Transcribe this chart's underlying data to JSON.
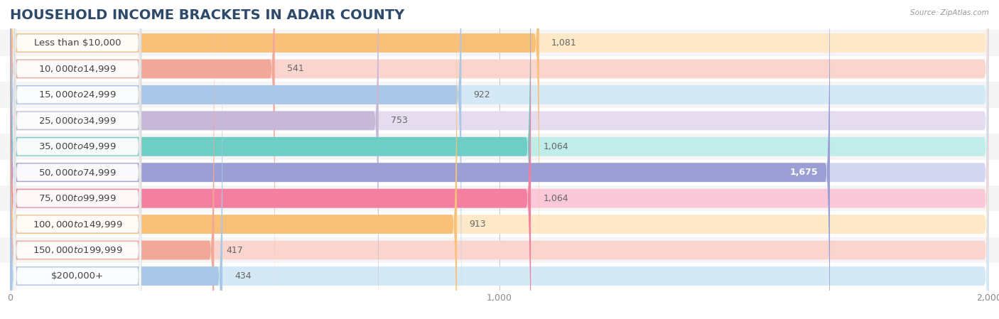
{
  "title": "HOUSEHOLD INCOME BRACKETS IN ADAIR COUNTY",
  "source": "Source: ZipAtlas.com",
  "categories": [
    "Less than $10,000",
    "$10,000 to $14,999",
    "$15,000 to $24,999",
    "$25,000 to $34,999",
    "$35,000 to $49,999",
    "$50,000 to $74,999",
    "$75,000 to $99,999",
    "$100,000 to $149,999",
    "$150,000 to $199,999",
    "$200,000+"
  ],
  "values": [
    1081,
    541,
    922,
    753,
    1064,
    1675,
    1064,
    913,
    417,
    434
  ],
  "bar_colors": [
    "#F9C07A",
    "#F2A899",
    "#A9C8E8",
    "#C8B8D8",
    "#6ECEC6",
    "#9B9FD4",
    "#F47FA0",
    "#F9C07A",
    "#F2A899",
    "#A9C8E8"
  ],
  "bar_bg_colors": [
    "#FDE8C8",
    "#FAD5CE",
    "#D5E8F5",
    "#E5DDEF",
    "#C0EDE9",
    "#D5D6EF",
    "#FAC8D8",
    "#FDE8C8",
    "#FAD5CE",
    "#D5E8F5"
  ],
  "xlim": [
    0,
    2000
  ],
  "xticks": [
    0,
    1000,
    2000
  ],
  "background_color": "#ffffff",
  "row_bg_color": "#f5f5f5",
  "title_fontsize": 14,
  "label_fontsize": 9.5,
  "value_fontsize": 9.0
}
